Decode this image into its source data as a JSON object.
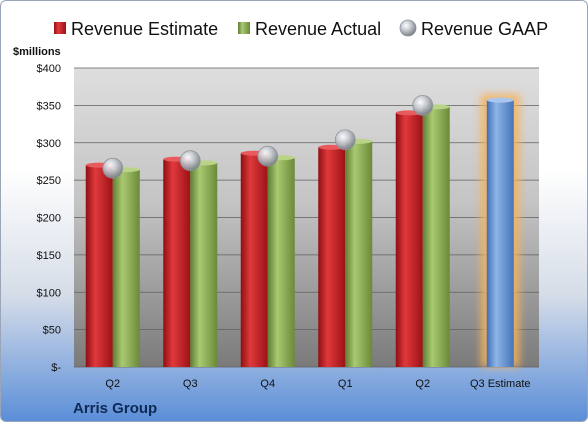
{
  "chart_data": {
    "type": "bar",
    "unit_label": "$millions",
    "company": "Arris Group",
    "categories": [
      "Q2",
      "Q3",
      "Q4",
      "Q1",
      "Q2",
      "Q3 Estimate"
    ],
    "ylim": [
      0,
      400
    ],
    "yticks": [
      {
        "value": 0,
        "label": "$-"
      },
      {
        "value": 50,
        "label": "$50"
      },
      {
        "value": 100,
        "label": "$100"
      },
      {
        "value": 150,
        "label": "$150"
      },
      {
        "value": 200,
        "label": "$200"
      },
      {
        "value": 250,
        "label": "$250"
      },
      {
        "value": 300,
        "label": "$300"
      },
      {
        "value": 350,
        "label": "$350"
      },
      {
        "value": 400,
        "label": "$400"
      }
    ],
    "grid": true,
    "legend_position": "top",
    "series": [
      {
        "name": "Revenue Estimate",
        "color": "#c0171d",
        "values": [
          270,
          278,
          286,
          294,
          340,
          null
        ]
      },
      {
        "name": "Revenue Actual",
        "color": "#8db050",
        "values": [
          264,
          273,
          280,
          302,
          348,
          null
        ]
      },
      {
        "name": "Revenue GAAP",
        "color": "#b8bcc4",
        "values": [
          266,
          276,
          282,
          304,
          350,
          null
        ]
      }
    ],
    "estimate": {
      "category_index": 5,
      "value": 357,
      "color": "#5b8fd3",
      "glow": "#f6b25a"
    }
  }
}
